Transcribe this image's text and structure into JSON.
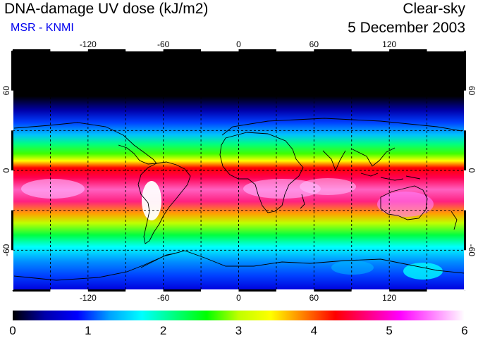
{
  "header": {
    "title": "DNA-damage UV dose (kJ/m2)",
    "subtitle": "MSR - KNMI",
    "sky_type": "Clear-sky",
    "date": "5 December 2003"
  },
  "colors": {
    "subtitle": "#0000ee",
    "scale": [
      "#000000",
      "#0000aa",
      "#0000ff",
      "#00a0ff",
      "#00ffff",
      "#00ff80",
      "#00ff00",
      "#c0ff00",
      "#ffff00",
      "#ff8000",
      "#ff0000",
      "#ff0080",
      "#ff00ff",
      "#ff80ff",
      "#ffffff"
    ]
  },
  "map": {
    "projection": "equirectangular",
    "lon_range": [
      -180,
      180
    ],
    "lat_range": [
      -90,
      90
    ],
    "lon_ticks": [
      "-120",
      "-60",
      "0",
      "60",
      "120"
    ],
    "lat_ticks": [
      "60",
      "0",
      "-60"
    ],
    "lon_tick_values": [
      -120,
      -60,
      0,
      60,
      120
    ],
    "lat_tick_values": [
      60,
      0,
      -60
    ],
    "grid_lon_step": 30,
    "grid_lat_step": 30
  },
  "colorbar": {
    "min": 0,
    "max": 6,
    "labels": [
      "0",
      "1",
      "2",
      "3",
      "4",
      "5",
      "6"
    ]
  }
}
